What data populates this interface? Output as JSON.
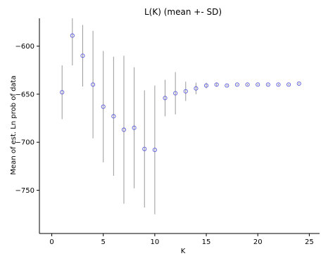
{
  "chart_data": {
    "type": "scatter",
    "title": "L(K) (mean +- SD)",
    "xlabel": "K",
    "ylabel": "Mean of est. Ln prob of data",
    "xlim": [
      -1.2,
      26
    ],
    "ylim": [
      -795,
      -571
    ],
    "xticks": [
      0,
      5,
      10,
      15,
      20,
      25
    ],
    "yticks": [
      -750,
      -700,
      -650,
      -600
    ],
    "grid": false,
    "marker": "open-circle",
    "colors": {
      "marker": "#5a5adf",
      "errorbar": "#999999",
      "axis": "#000000"
    },
    "points": [
      {
        "x": 1,
        "mean": -648,
        "sd": 28
      },
      {
        "x": 2,
        "mean": -589,
        "sd": 31
      },
      {
        "x": 3,
        "mean": -610,
        "sd": 32
      },
      {
        "x": 4,
        "mean": -640,
        "sd": 56
      },
      {
        "x": 5,
        "mean": -663,
        "sd": 58
      },
      {
        "x": 6,
        "mean": -673,
        "sd": 62
      },
      {
        "x": 7,
        "mean": -687,
        "sd": 77
      },
      {
        "x": 8,
        "mean": -685,
        "sd": 63
      },
      {
        "x": 9,
        "mean": -707,
        "sd": 61
      },
      {
        "x": 10,
        "mean": -708,
        "sd": 67
      },
      {
        "x": 11,
        "mean": -654,
        "sd": 19
      },
      {
        "x": 12,
        "mean": -649,
        "sd": 22
      },
      {
        "x": 13,
        "mean": -647,
        "sd": 10
      },
      {
        "x": 14,
        "mean": -644,
        "sd": 6
      },
      {
        "x": 15,
        "mean": -641,
        "sd": 3
      },
      {
        "x": 16,
        "mean": -640,
        "sd": 2
      },
      {
        "x": 17,
        "mean": -641,
        "sd": 1
      },
      {
        "x": 18,
        "mean": -640,
        "sd": 1
      },
      {
        "x": 19,
        "mean": -640,
        "sd": 1
      },
      {
        "x": 20,
        "mean": -640,
        "sd": 1
      },
      {
        "x": 21,
        "mean": -640,
        "sd": 1
      },
      {
        "x": 22,
        "mean": -640,
        "sd": 1
      },
      {
        "x": 23,
        "mean": -640,
        "sd": 1
      },
      {
        "x": 24,
        "mean": -639,
        "sd": 1
      }
    ]
  }
}
